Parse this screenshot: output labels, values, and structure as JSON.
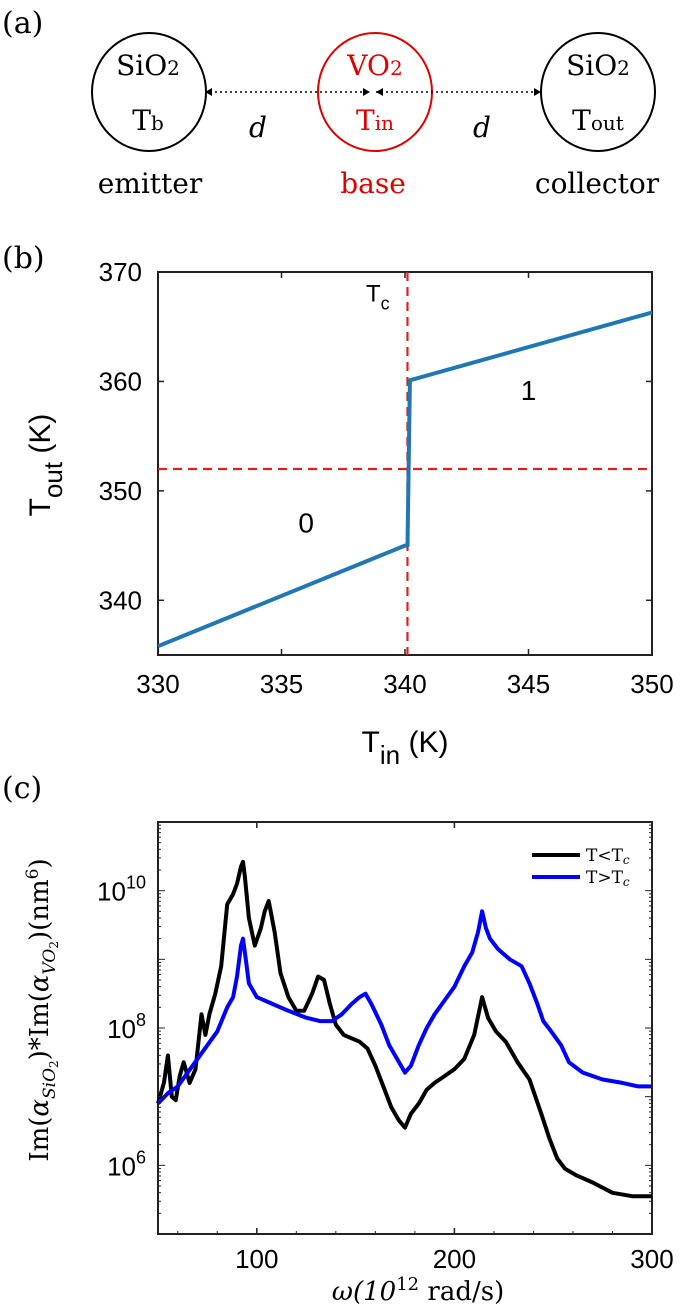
{
  "panel_a": {
    "panel_label": "(a)",
    "colors": {
      "black": "#000000",
      "red": "#e00000"
    },
    "emitter": {
      "material_main": "SiO",
      "material_sub": "2",
      "temp_main": "T",
      "temp_sub": "b",
      "role": "emitter"
    },
    "base": {
      "material_main": "VO",
      "material_sub": "2",
      "temp_main": "T",
      "temp_sub": "in",
      "role": "base"
    },
    "collector": {
      "material_main": "SiO",
      "material_sub": "2",
      "temp_main": "T",
      "temp_sub": "out",
      "role": "collector"
    },
    "gap_label": "d"
  },
  "chart_data": [
    {
      "panel_label": "(b)",
      "type": "line",
      "xlim": [
        330,
        350
      ],
      "ylim": [
        335,
        370
      ],
      "xticks": [
        330,
        335,
        340,
        345,
        350
      ],
      "yticks": [
        340,
        350,
        360,
        370
      ],
      "xlabel": {
        "main": "T",
        "sub": "in",
        "unit": " (K)"
      },
      "ylabel": {
        "main": "T",
        "sub": "out",
        "unit": " (K)"
      },
      "series": [
        {
          "name": "T_out",
          "color": "#1f77b4",
          "x": [
            330,
            340,
            340.1,
            340.2,
            350
          ],
          "y": [
            335.8,
            345,
            345,
            360.1,
            366.3
          ]
        }
      ],
      "reference_lines": {
        "vertical_x": 340.1,
        "horizontal_y": 352,
        "color": "#e02020"
      },
      "annotations": [
        {
          "text_main": "T",
          "text_sub": "c",
          "x": 338.9,
          "y": 367.5
        },
        {
          "text_main": "0",
          "text_sub": "",
          "x": 330,
          "y": 0
        },
        {
          "text_main": "1",
          "text_sub": "",
          "x": 0,
          "y": 0
        }
      ],
      "state_labels": [
        {
          "text": "0",
          "x": 336,
          "y": 346.2
        },
        {
          "text": "1",
          "x": 345,
          "y": 358.3
        }
      ],
      "tc_label": {
        "main": "T",
        "sub": "c",
        "x": 338.9,
        "y": 367.3
      }
    },
    {
      "panel_label": "(c)",
      "type": "line",
      "yscale": "log",
      "xlim": [
        50,
        300
      ],
      "ylim_log10": [
        5.0,
        11.0
      ],
      "xticks": [
        100,
        200,
        300
      ],
      "yticks_log10": [
        6,
        8,
        10
      ],
      "xlabel": {
        "main": "ω(10",
        "sup": "12",
        "unit": " rad/s)"
      },
      "ylabel": "Im(α_SiO2)*Im(α_VO2)(nm^6)",
      "ylabel_parts": {
        "p1": "Im(",
        "a1": "α",
        "s1": "SiO",
        "s1b": "2",
        "p2": ")*Im(",
        "a2": "α",
        "s2": "VO",
        "s2b": "2",
        "p3": ")(nm",
        "sup": "6",
        "p4": ")"
      },
      "legend": [
        {
          "label_main": "T<T",
          "label_sub": "c",
          "color": "#000000"
        },
        {
          "label_main": "T>T",
          "label_sub": "c",
          "color": "#0000ff"
        }
      ],
      "legend_position": "top-right",
      "series": [
        {
          "name": "T<Tc",
          "color": "#000000",
          "x": [
            50,
            53,
            55,
            57,
            59,
            61,
            63,
            66,
            69,
            72,
            74,
            76,
            79,
            82,
            85,
            88,
            90,
            92,
            93,
            94,
            96,
            99,
            102,
            104,
            106,
            109,
            112,
            116,
            120,
            124,
            128,
            131,
            134,
            137,
            140,
            144,
            148,
            152,
            156,
            160,
            164,
            168,
            172,
            175,
            178,
            182,
            186,
            190,
            195,
            200,
            205,
            210,
            214,
            217,
            221,
            226,
            232,
            238,
            244,
            248,
            252,
            256,
            262,
            270,
            280,
            290,
            300
          ],
          "y_log10": [
            6.9,
            7.2,
            7.6,
            7.0,
            6.95,
            7.3,
            7.5,
            7.2,
            7.4,
            8.2,
            7.9,
            8.2,
            8.5,
            8.9,
            9.8,
            9.95,
            10.1,
            10.35,
            10.42,
            10.2,
            9.6,
            9.2,
            9.45,
            9.7,
            9.85,
            9.4,
            8.8,
            8.45,
            8.25,
            8.25,
            8.5,
            8.75,
            8.7,
            8.35,
            8.05,
            7.9,
            7.85,
            7.8,
            7.7,
            7.45,
            7.15,
            6.85,
            6.65,
            6.55,
            6.75,
            6.9,
            7.1,
            7.2,
            7.3,
            7.4,
            7.55,
            7.9,
            8.45,
            8.15,
            7.95,
            7.8,
            7.5,
            7.25,
            6.75,
            6.4,
            6.1,
            5.95,
            5.85,
            5.75,
            5.6,
            5.55,
            5.55
          ]
        },
        {
          "name": "T>Tc",
          "color": "#0000ff",
          "x": [
            50,
            55,
            60,
            65,
            70,
            75,
            80,
            85,
            88,
            90,
            92,
            93,
            94,
            96,
            100,
            108,
            116,
            125,
            132,
            138,
            143,
            148,
            152,
            155,
            158,
            163,
            167,
            171,
            175,
            178,
            182,
            186,
            190,
            195,
            200,
            205,
            209,
            212,
            214,
            216,
            218,
            222,
            228,
            234,
            238,
            242,
            245,
            249,
            254,
            258,
            265,
            275,
            285,
            293,
            300
          ],
          "y_log10": [
            6.9,
            7.05,
            7.15,
            7.35,
            7.55,
            7.75,
            7.95,
            8.3,
            8.45,
            8.75,
            9.2,
            9.3,
            9.1,
            8.65,
            8.45,
            8.35,
            8.25,
            8.15,
            8.1,
            8.1,
            8.2,
            8.35,
            8.45,
            8.5,
            8.35,
            8.05,
            7.75,
            7.55,
            7.35,
            7.45,
            7.75,
            8.0,
            8.2,
            8.4,
            8.6,
            8.9,
            9.1,
            9.4,
            9.7,
            9.45,
            9.3,
            9.15,
            9.0,
            8.9,
            8.65,
            8.35,
            8.1,
            7.95,
            7.75,
            7.5,
            7.35,
            7.25,
            7.2,
            7.15,
            7.15
          ]
        }
      ]
    }
  ]
}
